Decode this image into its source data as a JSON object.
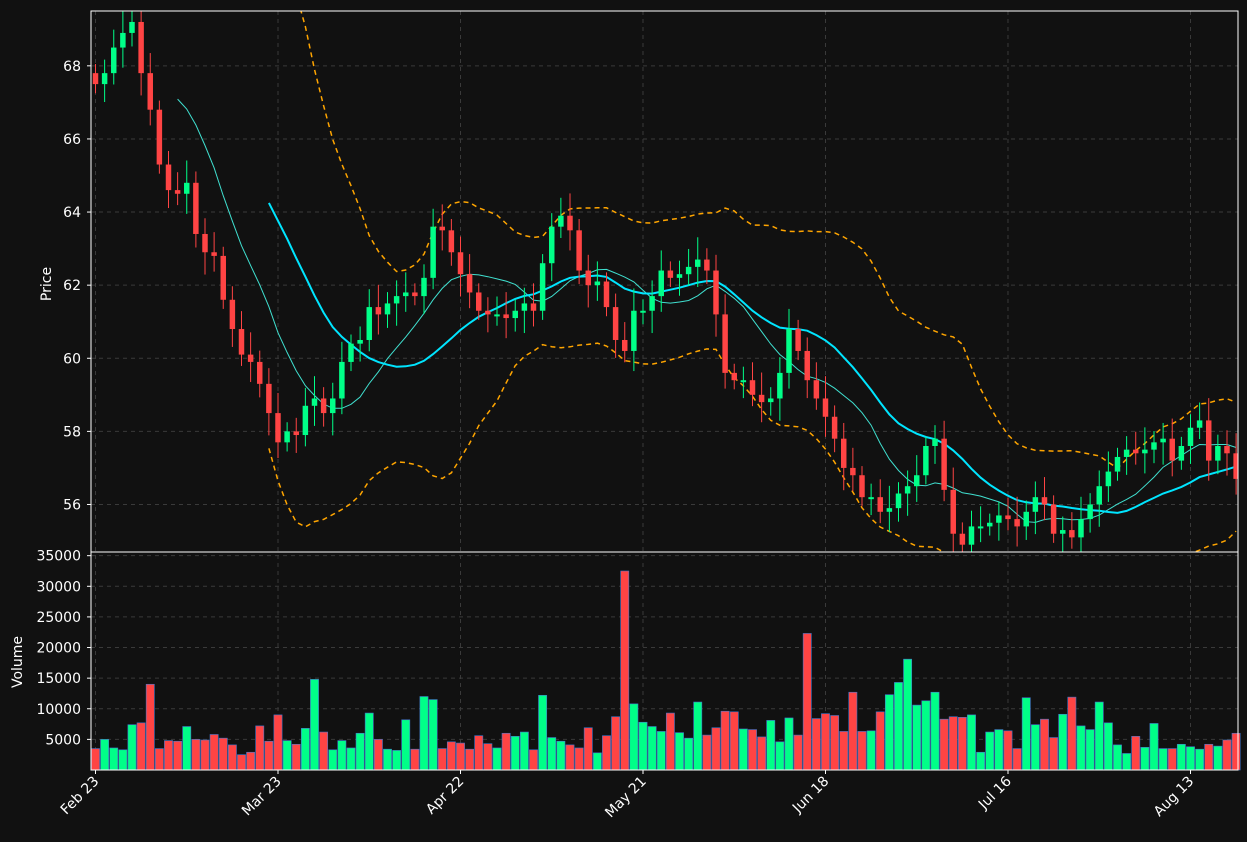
{
  "chart_data": {
    "type": "candlestick",
    "style": {
      "background": "#111111",
      "up_color": "#00ff88",
      "down_color": "#ff4444",
      "volume_edge": "#4477cc",
      "ma_fast_color": "#40e0d0",
      "ma_slow_color": "#00e5ff",
      "band_color": "#ffa500",
      "grid_color": "#3a3a3a",
      "grid": true
    },
    "price_panel": {
      "ylabel": "Price",
      "ylim": [
        54.7,
        69.5
      ],
      "yticks": [
        56,
        58,
        60,
        62,
        64,
        66,
        68
      ]
    },
    "volume_panel": {
      "ylabel": "Volume",
      "ylim": [
        0,
        35600
      ],
      "yticks": [
        5000,
        10000,
        15000,
        20000,
        25000,
        30000,
        35000
      ]
    },
    "x_axis": {
      "count": 126,
      "tick_labels": [
        {
          "i": 0,
          "label": "Feb 23"
        },
        {
          "i": 20,
          "label": "Mar 23"
        },
        {
          "i": 40,
          "label": "Apr 22"
        },
        {
          "i": 60,
          "label": "May 21"
        },
        {
          "i": 80,
          "label": "Jun 18"
        },
        {
          "i": 100,
          "label": "Jul 16"
        },
        {
          "i": 120,
          "label": "Aug 13"
        }
      ]
    },
    "price_anchors": [
      [
        0,
        67.5
      ],
      [
        1,
        67.8
      ],
      [
        2,
        68.5
      ],
      [
        3,
        68.9
      ],
      [
        4,
        69.2
      ],
      [
        5,
        67.8
      ],
      [
        6,
        66.8
      ],
      [
        7,
        65.3
      ],
      [
        8,
        64.6
      ],
      [
        9,
        64.5
      ],
      [
        10,
        64.8
      ],
      [
        11,
        63.4
      ],
      [
        12,
        62.9
      ],
      [
        13,
        62.8
      ],
      [
        14,
        61.6
      ],
      [
        15,
        60.8
      ],
      [
        16,
        60.1
      ],
      [
        17,
        59.9
      ],
      [
        18,
        59.3
      ],
      [
        19,
        58.5
      ],
      [
        20,
        57.7
      ],
      [
        21,
        58.0
      ],
      [
        22,
        57.9
      ],
      [
        23,
        58.7
      ],
      [
        24,
        58.9
      ],
      [
        25,
        58.5
      ],
      [
        26,
        58.9
      ],
      [
        27,
        59.9
      ],
      [
        28,
        60.4
      ],
      [
        29,
        60.5
      ],
      [
        30,
        61.4
      ],
      [
        31,
        61.2
      ],
      [
        32,
        61.5
      ],
      [
        33,
        61.7
      ],
      [
        34,
        61.8
      ],
      [
        35,
        61.7
      ],
      [
        36,
        62.2
      ],
      [
        37,
        63.6
      ],
      [
        38,
        63.5
      ],
      [
        39,
        62.9
      ],
      [
        40,
        62.3
      ],
      [
        41,
        61.8
      ],
      [
        42,
        61.3
      ],
      [
        43,
        61.2
      ],
      [
        44,
        61.2
      ],
      [
        45,
        61.1
      ],
      [
        46,
        61.3
      ],
      [
        47,
        61.5
      ],
      [
        48,
        61.3
      ],
      [
        49,
        62.6
      ],
      [
        50,
        63.6
      ],
      [
        51,
        63.9
      ],
      [
        52,
        63.5
      ],
      [
        53,
        62.4
      ],
      [
        54,
        62.0
      ],
      [
        55,
        62.1
      ],
      [
        56,
        61.4
      ],
      [
        57,
        60.5
      ],
      [
        58,
        60.2
      ],
      [
        59,
        61.3
      ],
      [
        60,
        61.3
      ],
      [
        61,
        61.7
      ],
      [
        62,
        62.4
      ],
      [
        63,
        62.2
      ],
      [
        64,
        62.3
      ],
      [
        65,
        62.5
      ],
      [
        66,
        62.7
      ],
      [
        67,
        62.4
      ],
      [
        68,
        61.2
      ],
      [
        69,
        59.6
      ],
      [
        70,
        59.4
      ],
      [
        71,
        59.4
      ],
      [
        72,
        59.0
      ],
      [
        73,
        58.8
      ],
      [
        74,
        58.9
      ],
      [
        75,
        59.6
      ],
      [
        76,
        60.8
      ],
      [
        77,
        60.2
      ],
      [
        78,
        59.4
      ],
      [
        79,
        58.9
      ],
      [
        80,
        58.4
      ],
      [
        81,
        57.8
      ],
      [
        82,
        57.0
      ],
      [
        83,
        56.8
      ],
      [
        84,
        56.2
      ],
      [
        85,
        56.2
      ],
      [
        86,
        55.8
      ],
      [
        87,
        55.9
      ],
      [
        88,
        56.3
      ],
      [
        89,
        56.5
      ],
      [
        90,
        56.8
      ],
      [
        91,
        57.6
      ],
      [
        92,
        57.8
      ],
      [
        93,
        56.4
      ],
      [
        94,
        55.2
      ],
      [
        95,
        54.9
      ],
      [
        96,
        55.4
      ],
      [
        97,
        55.4
      ],
      [
        98,
        55.5
      ],
      [
        99,
        55.7
      ],
      [
        100,
        55.6
      ],
      [
        101,
        55.4
      ],
      [
        102,
        55.8
      ],
      [
        103,
        56.2
      ],
      [
        104,
        56.0
      ],
      [
        105,
        55.2
      ],
      [
        106,
        55.3
      ],
      [
        107,
        55.1
      ],
      [
        108,
        55.6
      ],
      [
        109,
        56.0
      ],
      [
        110,
        56.5
      ],
      [
        111,
        56.9
      ],
      [
        112,
        57.3
      ],
      [
        113,
        57.5
      ],
      [
        114,
        57.4
      ],
      [
        115,
        57.5
      ],
      [
        116,
        57.7
      ],
      [
        117,
        57.8
      ],
      [
        118,
        57.2
      ],
      [
        119,
        57.6
      ],
      [
        120,
        58.1
      ],
      [
        121,
        58.3
      ],
      [
        122,
        57.2
      ],
      [
        123,
        57.6
      ],
      [
        124,
        57.4
      ],
      [
        125,
        56.7
      ]
    ],
    "volume_anchors": [
      [
        0,
        3500
      ],
      [
        1,
        5000
      ],
      [
        2,
        3600
      ],
      [
        3,
        3300
      ],
      [
        4,
        7400
      ],
      [
        5,
        7700
      ],
      [
        6,
        14000
      ],
      [
        7,
        3500
      ],
      [
        8,
        4800
      ],
      [
        9,
        4700
      ],
      [
        10,
        7100
      ],
      [
        11,
        5000
      ],
      [
        12,
        4900
      ],
      [
        13,
        5800
      ],
      [
        14,
        5200
      ],
      [
        15,
        4100
      ],
      [
        16,
        2500
      ],
      [
        17,
        2900
      ],
      [
        18,
        7200
      ],
      [
        19,
        4700
      ],
      [
        20,
        9000
      ],
      [
        21,
        4800
      ],
      [
        22,
        4200
      ],
      [
        23,
        6800
      ],
      [
        24,
        14800
      ],
      [
        25,
        6200
      ],
      [
        26,
        3300
      ],
      [
        27,
        4800
      ],
      [
        28,
        3600
      ],
      [
        29,
        6000
      ],
      [
        30,
        9300
      ],
      [
        31,
        5000
      ],
      [
        32,
        3400
      ],
      [
        33,
        3200
      ],
      [
        34,
        8200
      ],
      [
        35,
        3400
      ],
      [
        36,
        12000
      ],
      [
        37,
        11500
      ],
      [
        38,
        3500
      ],
      [
        39,
        4600
      ],
      [
        40,
        4400
      ],
      [
        41,
        3400
      ],
      [
        42,
        5600
      ],
      [
        43,
        4300
      ],
      [
        44,
        3600
      ],
      [
        45,
        6000
      ],
      [
        46,
        5500
      ],
      [
        47,
        6200
      ],
      [
        48,
        3300
      ],
      [
        49,
        12200
      ],
      [
        50,
        5300
      ],
      [
        51,
        4700
      ],
      [
        52,
        4100
      ],
      [
        53,
        3600
      ],
      [
        54,
        6900
      ],
      [
        55,
        2800
      ],
      [
        56,
        5600
      ],
      [
        57,
        8700
      ],
      [
        58,
        32500
      ],
      [
        59,
        10800
      ],
      [
        60,
        7800
      ],
      [
        61,
        7100
      ],
      [
        62,
        6300
      ],
      [
        63,
        9300
      ],
      [
        64,
        6100
      ],
      [
        65,
        5200
      ],
      [
        66,
        11100
      ],
      [
        67,
        5700
      ],
      [
        68,
        6900
      ],
      [
        69,
        9600
      ],
      [
        70,
        9500
      ],
      [
        71,
        6700
      ],
      [
        72,
        6600
      ],
      [
        73,
        5400
      ],
      [
        74,
        8100
      ],
      [
        75,
        4600
      ],
      [
        76,
        8500
      ],
      [
        77,
        5700
      ],
      [
        78,
        22300
      ],
      [
        79,
        8400
      ],
      [
        80,
        9200
      ],
      [
        81,
        8900
      ],
      [
        82,
        6300
      ],
      [
        83,
        12700
      ],
      [
        84,
        6300
      ],
      [
        85,
        6400
      ],
      [
        86,
        9500
      ],
      [
        87,
        12300
      ],
      [
        88,
        14300
      ],
      [
        89,
        18100
      ],
      [
        90,
        10600
      ],
      [
        91,
        11300
      ],
      [
        92,
        12700
      ],
      [
        93,
        8300
      ],
      [
        94,
        8700
      ],
      [
        95,
        8600
      ],
      [
        96,
        9000
      ],
      [
        97,
        2900
      ],
      [
        98,
        6200
      ],
      [
        99,
        6600
      ],
      [
        100,
        6400
      ],
      [
        101,
        3500
      ],
      [
        102,
        11800
      ],
      [
        103,
        7400
      ],
      [
        104,
        8300
      ],
      [
        105,
        5300
      ],
      [
        106,
        9100
      ],
      [
        107,
        11900
      ],
      [
        108,
        7200
      ],
      [
        109,
        6600
      ],
      [
        110,
        11100
      ],
      [
        111,
        7700
      ],
      [
        112,
        4100
      ],
      [
        113,
        2700
      ],
      [
        114,
        5500
      ],
      [
        115,
        3700
      ],
      [
        116,
        7600
      ],
      [
        117,
        3500
      ],
      [
        118,
        3500
      ],
      [
        119,
        4200
      ],
      [
        120,
        3800
      ],
      [
        121,
        3400
      ],
      [
        122,
        4200
      ],
      [
        123,
        3900
      ],
      [
        124,
        4900
      ],
      [
        125,
        6000
      ]
    ]
  }
}
